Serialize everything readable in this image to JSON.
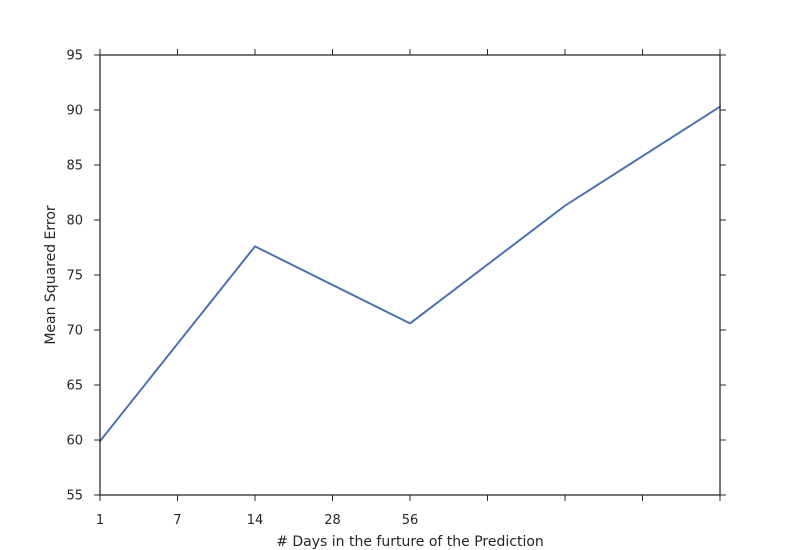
{
  "chart_data": {
    "type": "line",
    "title": "",
    "xlabel": "# Days in the furture of the Prediction",
    "ylabel": "Mean Squared Error",
    "x_tick_labels": [
      "1",
      "7",
      "14",
      "28",
      "56",
      "",
      "",
      "",
      ""
    ],
    "ylim": [
      55,
      95
    ],
    "y_ticks": [
      55,
      60,
      65,
      70,
      75,
      80,
      85,
      90,
      95
    ],
    "grid": false,
    "colors": {
      "line": "#4c72b0",
      "axes": "#262626"
    },
    "series": [
      {
        "x_index": [
          0,
          2,
          4,
          6,
          8
        ],
        "values": [
          59.9,
          77.6,
          70.6,
          81.3,
          90.3
        ]
      }
    ]
  }
}
